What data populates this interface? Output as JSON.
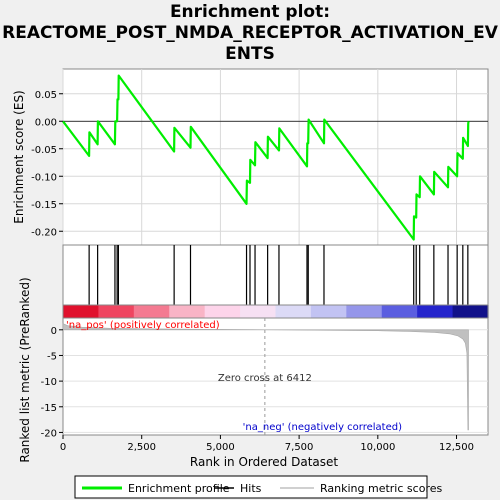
{
  "title_line1": "Enrichment plot:",
  "title_line2": "REACTOME_POST_NMDA_RECEPTOR_ACTIVATION_EV",
  "title_line3": "ENTS",
  "chart_data": {
    "type": "line",
    "title": "Enrichment plot: REACTOME_POST_NMDA_RECEPTOR_ACTIVATION_EVENTS",
    "xlabel": "Rank in Ordered Dataset",
    "xlim": [
      0,
      13500
    ],
    "xticks": [
      0,
      2500,
      5000,
      7500,
      10000,
      12500
    ],
    "xtick_labels": [
      "0",
      "2,500",
      "5,000",
      "7,500",
      "10,000",
      "12,500"
    ],
    "es_panel": {
      "ylabel": "Enrichment score (ES)",
      "ylim": [
        -0.225,
        0.095
      ],
      "yticks": [
        0.05,
        0.0,
        -0.05,
        -0.1,
        -0.15,
        -0.2
      ],
      "ytick_labels": [
        "0.05",
        "0.00",
        "-0.05",
        "-0.10",
        "-0.15",
        "-0.20"
      ],
      "grid": true,
      "series": [
        {
          "name": "Enrichment profile",
          "color": "#00ee00",
          "x": [
            0,
            830,
            840,
            1100,
            1110,
            1650,
            1660,
            1720,
            1730,
            1760,
            1770,
            3530,
            3540,
            4050,
            4060,
            5830,
            5840,
            5940,
            5950,
            6100,
            6110,
            6500,
            6510,
            6860,
            6870,
            7750,
            7760,
            7790,
            7800,
            8290,
            8300,
            11140,
            11150,
            11220,
            11230,
            11330,
            11340,
            11780,
            11790,
            12230,
            12240,
            12520,
            12530,
            12700,
            12710,
            12860,
            12870,
            12880
          ],
          "y": [
            0.0,
            -0.063,
            -0.02,
            -0.042,
            0.0,
            -0.042,
            0.0,
            0.0,
            0.04,
            0.04,
            0.083,
            -0.055,
            -0.012,
            -0.048,
            -0.01,
            -0.15,
            -0.108,
            -0.112,
            -0.07,
            -0.08,
            -0.038,
            -0.067,
            -0.028,
            -0.053,
            -0.013,
            -0.082,
            -0.04,
            -0.04,
            0.003,
            -0.04,
            0.003,
            -0.215,
            -0.173,
            -0.175,
            -0.133,
            -0.138,
            -0.1,
            -0.133,
            -0.092,
            -0.12,
            -0.083,
            -0.1,
            -0.058,
            -0.068,
            -0.03,
            -0.045,
            -0.005,
            0.0
          ]
        }
      ]
    },
    "hits": [
      830,
      1100,
      1650,
      1720,
      1760,
      3530,
      4050,
      5830,
      5940,
      6100,
      6500,
      6860,
      7750,
      7790,
      8290,
      11140,
      11220,
      11330,
      11780,
      12230,
      12520,
      12700,
      12860
    ],
    "heatmap_colors": [
      "#e0112d",
      "#ef4560",
      "#f47a91",
      "#f9b4c6",
      "#fdd4ea",
      "#f6e0f3",
      "#dcdaf6",
      "#c2c3f3",
      "#9596ea",
      "#5b5ee0",
      "#2525cc",
      "#12128a"
    ],
    "rank_panel": {
      "ylabel": "Ranked list metric (PreRanked)",
      "ylim": [
        -20.5,
        2.3
      ],
      "yticks": [
        0,
        -5,
        -10,
        -15,
        -20
      ],
      "ytick_labels": [
        "0",
        "-5",
        "-10",
        "-15",
        "-20"
      ],
      "fill_color": "#c0c0c0",
      "x": [
        0,
        150,
        600,
        1500,
        3000,
        5000,
        6412,
        8000,
        10000,
        11000,
        11800,
        12300,
        12550,
        12700,
        12780,
        12830,
        12860,
        12880
      ],
      "y": [
        1.2,
        0.8,
        0.5,
        0.3,
        0.18,
        0.08,
        0.0,
        -0.08,
        -0.18,
        -0.32,
        -0.5,
        -0.8,
        -1.2,
        -1.8,
        -2.6,
        -4.5,
        -19.5,
        -19.5
      ],
      "zero_cross": 6412,
      "zero_cross_label": "Zero cross at 6412",
      "pos_label": "'na_pos' (positively correlated)",
      "neg_label": "'na_neg' (negatively correlated)",
      "pos_color": "#ff0000",
      "neg_color": "#0000cc"
    },
    "legend": {
      "placement": "bottom",
      "entries": [
        {
          "label": "Enrichment profile",
          "color": "#00ee00"
        },
        {
          "label": "Hits",
          "color": "#000000"
        },
        {
          "label": "Ranking metric scores",
          "color": "#c0c0c0"
        }
      ]
    }
  }
}
